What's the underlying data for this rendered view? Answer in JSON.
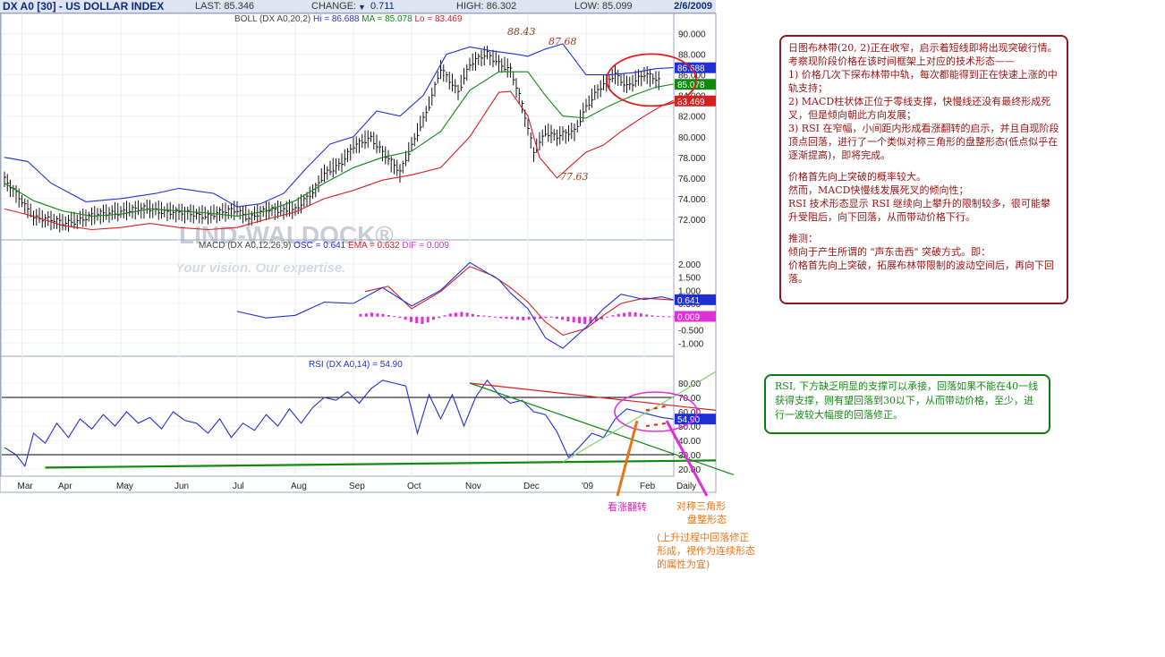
{
  "header": {
    "symbol": "DX A0 [30] - US DOLLAR INDEX",
    "last": "LAST: 85.346",
    "change_label": "CHANGE:",
    "change_arrow": "▼",
    "change_value": "0.711",
    "high": "HIGH: 86.302",
    "low": "LOW: 85.099",
    "date": "2/6/2009"
  },
  "panels": {
    "boll_title": "BOLL (DX A0,20,2)",
    "boll_hi": "Hi = 86.688",
    "boll_ma": "MA = 85.078",
    "boll_lo": "Lo = 83.469",
    "macd_title": "MACD (DX A0,12,26,9)",
    "macd_osc": "OSC = 0.641",
    "macd_ema": "EMA = 0.632",
    "macd_dif": "DIF = 0.009",
    "rsi_title": "RSI (DX A0,14) = 54.90",
    "watermark": "LIND-WALDOCK®",
    "watermark_tagline": "Your vision. Our expertise."
  },
  "colors": {
    "upper_band": "#1f2fd6",
    "middle_band": "#0f8a0f",
    "lower_band": "#d81e1e",
    "macd_line": "#1f2fd6",
    "signal_line": "#d81e1e",
    "histogram": "#e02fd6",
    "rsi_line": "#1f2fd6",
    "price_bars": "#111111"
  },
  "annotations": {
    "peak1": "88.43",
    "peak2": "87.68",
    "trough": "77.63",
    "bullish_reversal": "看涨翻转",
    "triangle_1": "对称三角形",
    "triangle_2": "盘整形态",
    "continuation_1": "(上升过程中回落修正",
    "continuation_2": "形成，视作为连续形态",
    "continuation_3": "的属性为宜)"
  },
  "notes": {
    "main": [
      "日图布林带(20, 2)正在收窄，启示着短线即将出现突破行情。考察现阶段价格在该时间框架上对应的技术形态——",
      "1) 价格几次下探布林带中轨，每次都能得到正在快速上涨的中轨支持；",
      "2) MACD柱状体正位于零线支撑，快慢线还没有最终形成死叉，但是倾向朝此方向发展；",
      "3) RSI 在窄幅，小间距内形成看涨翻转的启示，并且自现阶段顶点回落，进行了一个类似对称三角形的盘整形态(低点似乎在逐渐提高)，即将完成。",
      "",
      "价格首先向上突破的概率较大。",
      "然而，MACD快慢线发展死叉的倾向性；",
      "RSI 技术形态显示 RSI 继续向上攀升的限制较多，很可能攀升受阻后，向下回落，从而带动价格下行。",
      "",
      "推测：",
      "倾向于产生所谓的 \"声东击西\" 突破方式。即：",
      "价格首先向上突破，拓展布林带限制的波动空间后，再向下回落。"
    ],
    "rsi": "RSI, 下方缺乏明显的支撑可以承接，回落如果不能在40一线获得支撑，则有望回落到30以下，从而带动价格，至少，进行一波较大幅度的回落修正。"
  },
  "chart_data": {
    "type": "line",
    "title": "DX A0 [30] - US DOLLAR INDEX",
    "xlabel": "",
    "ylabel": "",
    "x": [
      "Mar",
      "Apr",
      "May",
      "Jun",
      "Jul",
      "Aug",
      "Sep",
      "Oct",
      "Nov",
      "Dec",
      "'09",
      "Feb",
      "Daily"
    ],
    "x_positions": [
      0.3,
      1.0,
      2.0,
      3.0,
      4.0,
      5.0,
      6.0,
      7.0,
      8.0,
      9.0,
      10.0,
      11.0,
      11.5
    ],
    "price_panel": {
      "ylim": [
        70,
        91
      ],
      "ticks": [
        "90.000",
        "88.000",
        "86.000",
        "84.000",
        "82.000",
        "80.000",
        "78.000",
        "76.000",
        "74.000",
        "72.000"
      ],
      "tick_values": [
        90,
        88,
        86,
        84,
        82,
        80,
        78,
        76,
        74,
        72
      ],
      "price_x": [
        0,
        0.5,
        1.0,
        1.5,
        2.0,
        2.5,
        3.0,
        3.5,
        4.0,
        4.2,
        4.5,
        5.0,
        5.3,
        5.5,
        5.8,
        6.0,
        6.3,
        6.6,
        6.8,
        7.0,
        7.3,
        7.5,
        7.8,
        8.0,
        8.3,
        8.5,
        8.7,
        8.9,
        9.1,
        9.3,
        9.5,
        9.8,
        10.0,
        10.2,
        10.5,
        10.7,
        11.0,
        11.3
      ],
      "price_close": [
        75.8,
        72.3,
        71.6,
        72.3,
        72.8,
        73.0,
        72.6,
        72.4,
        72.9,
        72.2,
        72.8,
        73.0,
        74.5,
        76.5,
        77.5,
        79.0,
        80.0,
        77.8,
        76.5,
        79.2,
        83.0,
        86.5,
        84.5,
        87.0,
        88.0,
        87.2,
        86.5,
        83.0,
        78.5,
        80.5,
        80.0,
        80.5,
        83.0,
        84.5,
        86.0,
        85.0,
        86.0,
        85.3
      ],
      "upper_x": [
        0,
        0.4,
        0.8,
        1.4,
        2.0,
        2.6,
        3.0,
        3.6,
        4.0,
        4.4,
        4.8,
        5.2,
        5.6,
        6.0,
        6.4,
        6.8,
        7.2,
        7.6,
        8.0,
        8.4,
        8.8,
        9.0,
        9.3,
        9.6,
        10.0,
        10.4,
        10.8,
        11.2,
        11.5
      ],
      "upper_band": [
        78.0,
        77.6,
        75.5,
        73.7,
        74.0,
        74.5,
        75.0,
        74.5,
        73.2,
        73.5,
        74.5,
        77.0,
        79.3,
        80.0,
        82.5,
        82.0,
        84.0,
        88.0,
        88.7,
        88.3,
        88.0,
        87.8,
        88.5,
        89.0,
        86.0,
        86.0,
        86.2,
        86.6,
        86.7
      ],
      "middle_x": [
        0,
        0.5,
        1.0,
        1.5,
        2.0,
        2.5,
        3.0,
        3.5,
        4.0,
        4.5,
        5.0,
        5.5,
        6.0,
        6.5,
        7.0,
        7.5,
        8.0,
        8.5,
        9.0,
        9.3,
        9.6,
        10.0,
        10.4,
        10.8,
        11.2,
        11.5
      ],
      "middle_band": [
        75.5,
        73.8,
        72.8,
        72.3,
        72.5,
        73.0,
        72.8,
        72.6,
        72.3,
        72.8,
        73.8,
        75.5,
        77.0,
        78.0,
        78.6,
        80.5,
        84.5,
        86.3,
        86.3,
        84.0,
        82.0,
        81.8,
        83.0,
        84.0,
        84.8,
        85.1
      ],
      "lower_x": [
        0,
        0.5,
        1.0,
        1.5,
        2.0,
        2.5,
        3.0,
        3.5,
        4.0,
        4.5,
        5.0,
        5.5,
        6.0,
        6.5,
        7.0,
        7.5,
        8.0,
        8.5,
        8.7,
        9.0,
        9.2,
        9.5,
        10.0,
        10.3,
        10.6,
        11.0,
        11.3,
        11.5
      ],
      "lower_band": [
        73.0,
        72.3,
        71.4,
        71.0,
        71.2,
        71.6,
        71.2,
        71.0,
        71.2,
        72.0,
        72.7,
        74.0,
        74.8,
        75.8,
        76.3,
        77.0,
        80.0,
        84.3,
        84.4,
        82.0,
        78.0,
        76.0,
        78.5,
        79.2,
        80.5,
        82.0,
        83.0,
        83.5
      ],
      "last_values": {
        "upper": 86.688,
        "middle": 85.078,
        "lower": 83.469
      },
      "labels": {
        "upper": "86.688",
        "middle": "85.078",
        "lower": "83.469"
      }
    },
    "macd_panel": {
      "ylim": [
        -1.5,
        2.5
      ],
      "ticks": [
        "2.000",
        "1.500",
        "1.000",
        "0.500",
        "-0.500",
        "-1.000"
      ],
      "tick_values": [
        2.0,
        1.5,
        1.0,
        0.5,
        -0.5,
        -1.0
      ],
      "macd_x": [
        4.0,
        4.5,
        5.0,
        5.5,
        6.0,
        6.5,
        7.0,
        7.5,
        8.0,
        8.5,
        8.7,
        9.0,
        9.3,
        9.6,
        10.0,
        10.3,
        10.6,
        11.0,
        11.3,
        11.5
      ],
      "macd": [
        0.2,
        -0.05,
        0.05,
        0.55,
        0.5,
        1.1,
        0.4,
        1.0,
        2.05,
        1.4,
        0.9,
        0.3,
        -0.8,
        -1.2,
        -0.4,
        0.3,
        0.85,
        0.65,
        0.75,
        0.64
      ],
      "signal_x": [
        6.2,
        6.6,
        7.0,
        7.5,
        8.0,
        8.4,
        8.7,
        9.0,
        9.3,
        9.6,
        10.0,
        10.3,
        10.6,
        11.0,
        11.3,
        11.5
      ],
      "signal": [
        0.95,
        1.15,
        0.3,
        0.95,
        1.9,
        1.55,
        1.1,
        0.55,
        -0.2,
        -0.7,
        -0.45,
        0.05,
        0.5,
        0.7,
        0.66,
        0.63
      ],
      "hist_x_start": 6.1,
      "hist_x_end": 11.5,
      "histogram_pattern": [
        0.1,
        0.12,
        0.15,
        0.12,
        0.1,
        0.06,
        0.02,
        -0.05,
        -0.12,
        -0.2,
        -0.25,
        -0.28,
        -0.22,
        -0.12,
        -0.05,
        0.05,
        0.12,
        0.15,
        0.18,
        0.15,
        0.1,
        0.06,
        0.04,
        0.02,
        -0.02,
        -0.06,
        -0.08,
        -0.1,
        -0.12,
        -0.14,
        -0.12,
        -0.1,
        -0.08,
        -0.05,
        -0.03,
        -0.08,
        -0.12,
        -0.18,
        -0.22,
        -0.25,
        -0.28,
        -0.25,
        -0.18,
        -0.1,
        -0.02,
        0.05,
        0.1,
        0.14,
        0.18,
        0.16,
        0.12,
        0.08,
        0.05,
        0.03,
        0.02,
        0.01,
        0.009
      ],
      "labels": {
        "osc": "0.641",
        "dif": "0.009"
      }
    },
    "rsi_panel": {
      "ylim": [
        15,
        90
      ],
      "ticks": [
        "80.00",
        "70.00",
        "60.00",
        "50.00",
        "40.00",
        "30.00",
        "20.00"
      ],
      "tick_values": [
        80,
        70,
        60,
        50,
        40,
        30,
        20
      ],
      "overbought": 70,
      "oversold": 30,
      "rsi_x": [
        0,
        0.2,
        0.35,
        0.5,
        0.7,
        0.9,
        1.1,
        1.3,
        1.5,
        1.7,
        1.9,
        2.1,
        2.3,
        2.5,
        2.7,
        2.9,
        3.1,
        3.3,
        3.5,
        3.7,
        3.9,
        4.1,
        4.3,
        4.5,
        4.7,
        4.9,
        5.1,
        5.3,
        5.5,
        5.7,
        5.9,
        6.1,
        6.3,
        6.5,
        6.7,
        6.9,
        7.1,
        7.3,
        7.5,
        7.7,
        7.9,
        8.1,
        8.3,
        8.5,
        8.7,
        8.9,
        9.1,
        9.3,
        9.5,
        9.7,
        9.9,
        10.1,
        10.3,
        10.5,
        10.7,
        10.9,
        11.1,
        11.3,
        11.5
      ],
      "rsi": [
        35,
        30,
        22,
        45,
        38,
        52,
        42,
        55,
        48,
        58,
        50,
        60,
        52,
        56,
        48,
        60,
        54,
        52,
        45,
        55,
        42,
        52,
        47,
        58,
        50,
        62,
        52,
        63,
        70,
        68,
        74,
        66,
        76,
        82,
        80,
        78,
        45,
        72,
        55,
        72,
        50,
        70,
        82,
        72,
        66,
        68,
        60,
        58,
        46,
        28,
        36,
        45,
        42,
        55,
        62,
        60,
        58,
        56,
        54.9
      ],
      "last_label": "54.90"
    }
  }
}
